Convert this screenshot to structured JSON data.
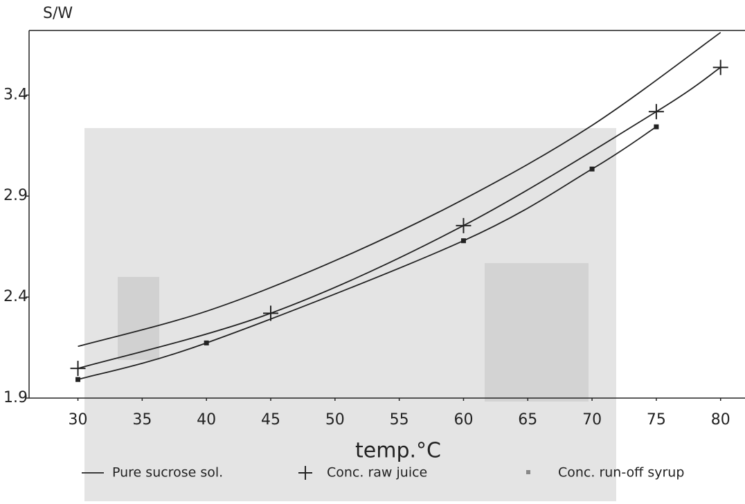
{
  "chart_data": {
    "type": "line",
    "ylabel": "S/W",
    "xlabel": "temp.°C",
    "xlim": [
      26.2,
      81.9
    ],
    "ylim": [
      1.9,
      3.72
    ],
    "xticks": [
      30,
      35,
      40,
      45,
      50,
      55,
      60,
      65,
      70,
      75,
      80
    ],
    "yticks": [
      1.9,
      2.4,
      2.9,
      3.4
    ],
    "grid": false,
    "legend": "bottom",
    "series": [
      {
        "name": "Pure sucrose sol.",
        "color": "#222222",
        "marker": "none",
        "x": [
          30,
          40,
          50,
          60,
          70,
          80
        ],
        "values": [
          2.156,
          2.33,
          2.58,
          2.884,
          3.25,
          3.71
        ]
      },
      {
        "name": "Conc. raw juice",
        "color": "#222222",
        "marker": "plus",
        "x": [
          30,
          45,
          60,
          75,
          80
        ],
        "values": [
          2.047,
          2.32,
          2.754,
          3.318,
          3.537
        ]
      },
      {
        "name": "Conc. run-off syrup",
        "color": "#222222",
        "marker": "square",
        "x": [
          30,
          40,
          60,
          70,
          75
        ],
        "values": [
          1.992,
          2.173,
          2.679,
          3.034,
          3.243
        ]
      }
    ]
  }
}
